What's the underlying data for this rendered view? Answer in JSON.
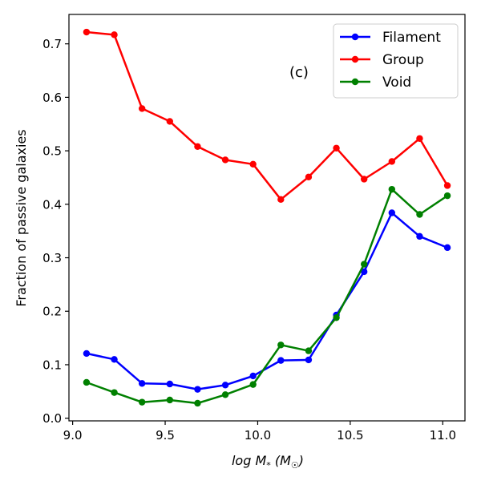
{
  "chart_data": {
    "type": "line",
    "title": "",
    "annotation": "(c)",
    "xlabel_parts": {
      "pre": "log M",
      "sub": "*",
      "mid": " (M",
      "sub2": "☉",
      "post": ")"
    },
    "ylabel": "Fraction of passive galaxies",
    "xlim": [
      8.98,
      11.12
    ],
    "ylim": [
      -0.005,
      0.755
    ],
    "xticks": [
      9.0,
      9.5,
      10.0,
      10.5,
      11.0
    ],
    "xtick_labels": [
      "9.0",
      "9.5",
      "10.0",
      "10.5",
      "11.0"
    ],
    "yticks": [
      0.0,
      0.1,
      0.2,
      0.3,
      0.4,
      0.5,
      0.6,
      0.7
    ],
    "ytick_labels": [
      "0.0",
      "0.1",
      "0.2",
      "0.3",
      "0.4",
      "0.5",
      "0.6",
      "0.7"
    ],
    "legend_position": "top-right",
    "grid": false,
    "x": [
      9.075,
      9.225,
      9.375,
      9.525,
      9.675,
      9.825,
      9.975,
      10.125,
      10.275,
      10.425,
      10.575,
      10.725,
      10.875,
      11.025
    ],
    "series": [
      {
        "name": "Filament",
        "color": "#0000ff",
        "values": [
          0.121,
          0.11,
          0.065,
          0.064,
          0.054,
          0.062,
          0.079,
          0.108,
          0.109,
          0.193,
          0.274,
          0.384,
          0.34,
          0.319
        ]
      },
      {
        "name": "Group",
        "color": "#ff0000",
        "values": [
          0.722,
          0.717,
          0.579,
          0.555,
          0.508,
          0.483,
          0.475,
          0.409,
          0.451,
          0.505,
          0.447,
          0.48,
          0.523,
          0.435
        ]
      },
      {
        "name": "Void",
        "color": "#008000",
        "values": [
          0.067,
          0.048,
          0.03,
          0.034,
          0.028,
          0.044,
          0.063,
          0.137,
          0.126,
          0.188,
          0.288,
          0.428,
          0.381,
          0.416
        ]
      }
    ]
  }
}
